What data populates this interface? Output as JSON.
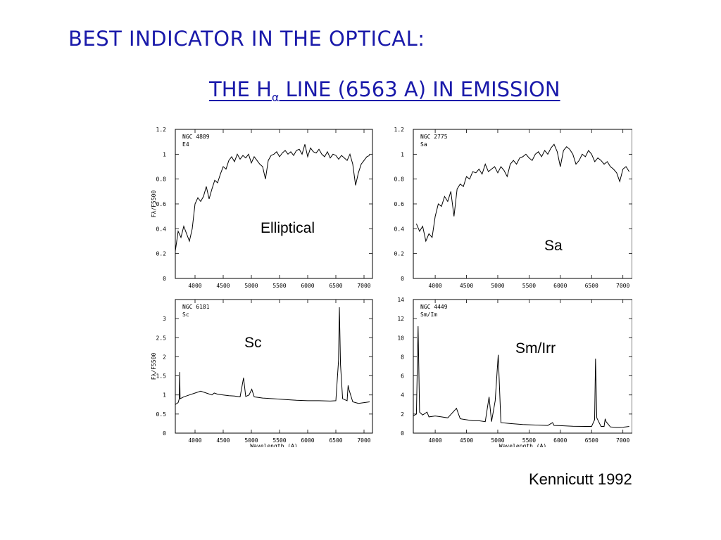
{
  "slide": {
    "title_line1": "BEST INDICATOR IN THE OPTICAL:",
    "title_line2_pre": "THE H",
    "title_line2_sub": "α",
    "title_line2_post": "  LINE (6563 A) IN EMISSION",
    "credit": "Kennicutt 1992"
  },
  "chart_data": [
    {
      "type": "line",
      "object": "NGC 4889",
      "morph": "E4",
      "label": "Elliptical",
      "xlabel": "",
      "ylabel": "Fλ/F5500",
      "xlim": [
        3650,
        7150
      ],
      "ylim": [
        0,
        1.2
      ],
      "xticks": [
        4000,
        4500,
        5000,
        5500,
        6000,
        6500,
        7000
      ],
      "yticks": [
        0,
        0.2,
        0.4,
        0.6,
        0.8,
        1,
        1.2
      ],
      "x": [
        3650,
        3700,
        3750,
        3800,
        3850,
        3900,
        3950,
        4000,
        4050,
        4100,
        4150,
        4200,
        4250,
        4300,
        4350,
        4400,
        4450,
        4500,
        4550,
        4600,
        4650,
        4700,
        4750,
        4800,
        4850,
        4900,
        4950,
        5000,
        5050,
        5100,
        5150,
        5200,
        5250,
        5300,
        5350,
        5400,
        5450,
        5500,
        5550,
        5600,
        5650,
        5700,
        5750,
        5800,
        5850,
        5900,
        5950,
        6000,
        6050,
        6100,
        6150,
        6200,
        6250,
        6300,
        6350,
        6400,
        6450,
        6500,
        6550,
        6600,
        6650,
        6700,
        6750,
        6800,
        6850,
        6900,
        6950,
        7000,
        7050,
        7100
      ],
      "y": [
        0.22,
        0.38,
        0.33,
        0.42,
        0.36,
        0.3,
        0.4,
        0.6,
        0.65,
        0.62,
        0.66,
        0.74,
        0.64,
        0.72,
        0.79,
        0.77,
        0.84,
        0.9,
        0.88,
        0.95,
        0.98,
        0.94,
        1.0,
        0.96,
        0.99,
        0.97,
        1.0,
        0.93,
        0.98,
        0.95,
        0.92,
        0.9,
        0.8,
        0.95,
        0.99,
        1.0,
        1.02,
        0.98,
        1.01,
        1.03,
        1.0,
        1.02,
        0.99,
        1.03,
        1.04,
        1.0,
        1.08,
        0.98,
        1.05,
        1.02,
        1.01,
        1.04,
        1.0,
        0.98,
        1.02,
        0.97,
        1.0,
        0.99,
        0.96,
        0.99,
        0.97,
        0.95,
        1.0,
        0.92,
        0.75,
        0.85,
        0.92,
        0.95,
        0.98,
        0.99
      ]
    },
    {
      "type": "line",
      "object": "NGC 2775",
      "morph": "Sa",
      "label": "Sa",
      "xlabel": "",
      "ylabel": "",
      "xlim": [
        3650,
        7150
      ],
      "ylim": [
        0,
        1.2
      ],
      "xticks": [
        4000,
        4500,
        5000,
        5500,
        6000,
        6500,
        7000
      ],
      "yticks": [
        0,
        0.2,
        0.4,
        0.6,
        0.8,
        1,
        1.2
      ],
      "x": [
        3700,
        3750,
        3800,
        3850,
        3900,
        3950,
        4000,
        4050,
        4100,
        4150,
        4200,
        4250,
        4300,
        4350,
        4400,
        4450,
        4500,
        4550,
        4600,
        4650,
        4700,
        4750,
        4800,
        4850,
        4900,
        4950,
        5000,
        5050,
        5100,
        5150,
        5200,
        5250,
        5300,
        5350,
        5400,
        5450,
        5500,
        5550,
        5600,
        5650,
        5700,
        5750,
        5800,
        5850,
        5900,
        5950,
        6000,
        6050,
        6100,
        6150,
        6200,
        6250,
        6300,
        6350,
        6400,
        6450,
        6500,
        6550,
        6600,
        6650,
        6700,
        6750,
        6800,
        6850,
        6900,
        6950,
        7000,
        7050,
        7100
      ],
      "y": [
        0.44,
        0.38,
        0.42,
        0.3,
        0.36,
        0.33,
        0.5,
        0.6,
        0.58,
        0.66,
        0.62,
        0.7,
        0.5,
        0.72,
        0.76,
        0.74,
        0.82,
        0.8,
        0.86,
        0.85,
        0.88,
        0.84,
        0.92,
        0.86,
        0.88,
        0.9,
        0.85,
        0.9,
        0.87,
        0.82,
        0.92,
        0.95,
        0.92,
        0.97,
        0.98,
        1.0,
        0.97,
        0.95,
        1.0,
        1.02,
        0.98,
        1.03,
        1.0,
        1.05,
        1.08,
        1.02,
        0.9,
        1.03,
        1.06,
        1.04,
        1.0,
        0.92,
        0.95,
        1.0,
        0.98,
        1.03,
        1.0,
        0.94,
        0.97,
        0.95,
        0.92,
        0.94,
        0.9,
        0.88,
        0.85,
        0.78,
        0.88,
        0.9,
        0.86
      ]
    },
    {
      "type": "line",
      "object": "NGC 6181",
      "morph": "Sc",
      "label": "Sc",
      "xlabel": "Wavelength (A)",
      "ylabel": "Fλ/F5500",
      "xlim": [
        3650,
        7150
      ],
      "ylim": [
        0,
        3.5
      ],
      "xticks": [
        4000,
        4500,
        5000,
        5500,
        6000,
        6500,
        7000
      ],
      "yticks": [
        0,
        0.5,
        1,
        1.5,
        2,
        2.5,
        3
      ],
      "x": [
        3650,
        3700,
        3720,
        3727,
        3735,
        3800,
        3900,
        4000,
        4100,
        4200,
        4300,
        4340,
        4400,
        4500,
        4600,
        4700,
        4800,
        4861,
        4900,
        4959,
        5007,
        5050,
        5200,
        5400,
        5600,
        5800,
        6000,
        6200,
        6400,
        6500,
        6548,
        6563,
        6583,
        6620,
        6700,
        6717,
        6731,
        6800,
        6900,
        7000,
        7100
      ],
      "y": [
        0.75,
        0.8,
        0.9,
        1.6,
        0.9,
        0.95,
        1.0,
        1.05,
        1.1,
        1.05,
        1.0,
        1.05,
        1.02,
        1.0,
        0.98,
        0.97,
        0.95,
        1.45,
        0.96,
        1.0,
        1.15,
        0.95,
        0.92,
        0.9,
        0.88,
        0.86,
        0.85,
        0.85,
        0.84,
        0.85,
        1.9,
        3.3,
        1.8,
        0.9,
        0.85,
        1.25,
        1.15,
        0.82,
        0.78,
        0.8,
        0.82
      ]
    },
    {
      "type": "line",
      "object": "NGC 4449",
      "morph": "Sm/Im",
      "label": "Sm/Irr",
      "xlabel": "Wavelength (A)",
      "ylabel": "",
      "xlim": [
        3650,
        7150
      ],
      "ylim": [
        0,
        14
      ],
      "xticks": [
        4000,
        4500,
        5000,
        5500,
        6000,
        6500,
        7000
      ],
      "yticks": [
        0,
        2,
        4,
        6,
        8,
        10,
        12,
        14
      ],
      "x": [
        3650,
        3700,
        3727,
        3750,
        3800,
        3869,
        3900,
        4000,
        4100,
        4200,
        4340,
        4400,
        4500,
        4600,
        4700,
        4800,
        4861,
        4900,
        4959,
        5007,
        5050,
        5200,
        5400,
        5600,
        5800,
        5876,
        5900,
        6000,
        6200,
        6400,
        6500,
        6548,
        6563,
        6583,
        6650,
        6700,
        6717,
        6731,
        6800,
        6900,
        7000,
        7100
      ],
      "y": [
        1.8,
        2.0,
        11.2,
        2.2,
        1.9,
        2.2,
        1.7,
        1.8,
        1.7,
        1.6,
        2.6,
        1.5,
        1.4,
        1.3,
        1.3,
        1.2,
        3.8,
        1.2,
        3.4,
        8.2,
        1.1,
        1.0,
        0.9,
        0.85,
        0.8,
        1.1,
        0.8,
        0.78,
        0.72,
        0.7,
        0.7,
        1.4,
        7.8,
        1.6,
        0.7,
        0.7,
        1.5,
        1.2,
        0.65,
        0.6,
        0.62,
        0.7
      ]
    }
  ]
}
